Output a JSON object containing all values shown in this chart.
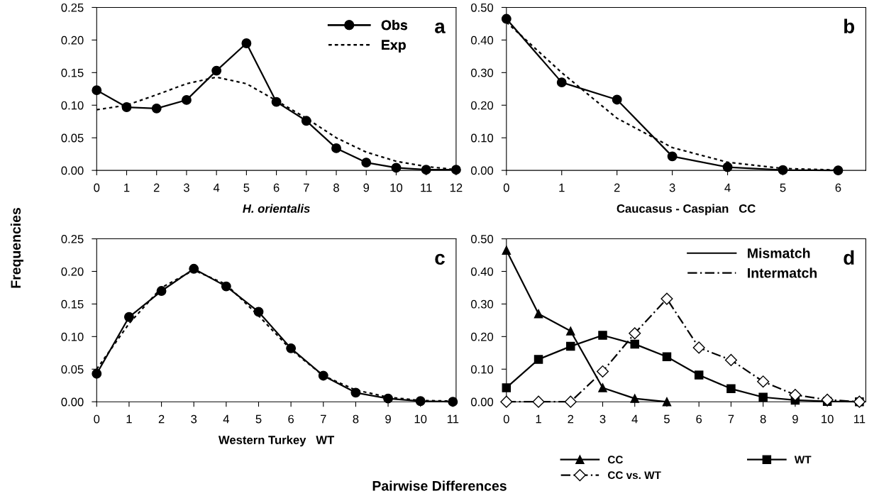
{
  "chart_data": [
    {
      "type": "line",
      "title": "a",
      "xlabel": "H. orientalis",
      "ylabel": "Frequencies",
      "x": [
        0,
        1,
        2,
        3,
        4,
        5,
        6,
        7,
        8,
        9,
        10,
        11,
        12
      ],
      "xlim": [
        0,
        12
      ],
      "xticks": [
        0,
        1,
        2,
        3,
        4,
        5,
        6,
        7,
        8,
        9,
        10,
        11,
        12
      ],
      "ylim": [
        0,
        0.25
      ],
      "yticks": [
        {
          "value": 0,
          "label": "0.00"
        },
        {
          "value": 0.05,
          "label": "0.05"
        },
        {
          "value": 0.1,
          "label": "0.10"
        },
        {
          "value": 0.15,
          "label": "0.15"
        },
        {
          "value": 0.2,
          "label": "0.20"
        },
        {
          "value": 0.25,
          "label": "0.25"
        }
      ],
      "grid": false,
      "legend": "top right",
      "series": [
        {
          "name": "Obs",
          "color": "#000000",
          "marker": "circle",
          "line_style": "solid",
          "values": [
            0.123,
            0.097,
            0.095,
            0.108,
            0.153,
            0.195,
            0.105,
            0.076,
            0.034,
            0.012,
            0.004,
            0.001,
            0.001
          ]
        },
        {
          "name": "Exp",
          "color": "#000000",
          "marker": "none",
          "line_style": "dotted",
          "values": [
            0.093,
            0.1,
            0.116,
            0.133,
            0.143,
            0.133,
            0.107,
            0.08,
            0.05,
            0.028,
            0.014,
            0.006,
            0.001
          ]
        }
      ]
    },
    {
      "type": "line",
      "title": "b",
      "xlabel": "Caucasus - Caspian   CC",
      "x": [
        0,
        1,
        2,
        3,
        4,
        5,
        6
      ],
      "xlim": [
        0,
        6.5
      ],
      "xticks": [
        0,
        1,
        2,
        3,
        4,
        5,
        6
      ],
      "ylim": [
        0,
        0.5
      ],
      "yticks": [
        {
          "value": 0,
          "label": "0.00"
        },
        {
          "value": 0.1,
          "label": "0.10"
        },
        {
          "value": 0.2,
          "label": "0.20"
        },
        {
          "value": 0.3,
          "label": "0.30"
        },
        {
          "value": 0.4,
          "label": "0.40"
        },
        {
          "value": 0.5,
          "label": "0.50"
        }
      ],
      "grid": false,
      "series": [
        {
          "color": "#000000",
          "marker": "circle",
          "line_style": "solid",
          "values": [
            0.465,
            0.27,
            0.217,
            0.043,
            0.01,
            0.001,
            0.0
          ]
        },
        {
          "color": "#000000",
          "marker": "none",
          "line_style": "dotted",
          "values": [
            0.455,
            0.3,
            0.16,
            0.07,
            0.025,
            0.006,
            0.001
          ]
        }
      ]
    },
    {
      "type": "line",
      "title": "c",
      "xlabel": "Western Turkey   WT",
      "x": [
        0,
        1,
        2,
        3,
        4,
        5,
        6,
        7,
        8,
        9,
        10,
        11
      ],
      "xlim": [
        0,
        11.1
      ],
      "xticks": [
        0,
        1,
        2,
        3,
        4,
        5,
        6,
        7,
        8,
        9,
        10,
        11
      ],
      "ylim": [
        0,
        0.25
      ],
      "yticks": [
        {
          "value": 0,
          "label": "0.00"
        },
        {
          "value": 0.05,
          "label": "0.05"
        },
        {
          "value": 0.1,
          "label": "0.10"
        },
        {
          "value": 0.15,
          "label": "0.15"
        },
        {
          "value": 0.2,
          "label": "0.20"
        },
        {
          "value": 0.25,
          "label": "0.25"
        }
      ],
      "grid": false,
      "series": [
        {
          "color": "#000000",
          "marker": "circle",
          "line_style": "solid",
          "values": [
            0.043,
            0.13,
            0.17,
            0.204,
            0.177,
            0.138,
            0.082,
            0.04,
            0.014,
            0.005,
            0.001,
            0.0
          ]
        },
        {
          "color": "#000000",
          "marker": "none",
          "line_style": "dotted",
          "values": [
            0.05,
            0.12,
            0.175,
            0.202,
            0.18,
            0.132,
            0.08,
            0.04,
            0.018,
            0.007,
            0.002,
            0.001
          ]
        }
      ]
    },
    {
      "type": "line",
      "title": "d",
      "xlabel": "Pairwise Differences",
      "x": [
        0,
        1,
        2,
        3,
        4,
        5,
        6,
        7,
        8,
        9,
        10,
        11
      ],
      "xlim": [
        0,
        11.2
      ],
      "xticks": [
        0,
        1,
        2,
        3,
        4,
        5,
        6,
        7,
        8,
        9,
        10,
        11
      ],
      "ylim": [
        0,
        0.5
      ],
      "yticks": [
        {
          "value": 0,
          "label": "0.00"
        },
        {
          "value": 0.1,
          "label": "0.10"
        },
        {
          "value": 0.2,
          "label": "0.20"
        },
        {
          "value": 0.3,
          "label": "0.30"
        },
        {
          "value": 0.4,
          "label": "0.40"
        },
        {
          "value": 0.5,
          "label": "0.50"
        }
      ],
      "grid": false,
      "legend": "bottom",
      "annotations": [
        "Mismatch",
        "Intermatch"
      ],
      "series": [
        {
          "name": "CC",
          "color": "#000000",
          "marker": "triangle",
          "line_style": "solid",
          "values": [
            0.465,
            0.27,
            0.217,
            0.043,
            0.01,
            0.0,
            null,
            null,
            null,
            null,
            null,
            null
          ]
        },
        {
          "name": "WT",
          "color": "#000000",
          "marker": "square",
          "line_style": "solid",
          "values": [
            0.043,
            0.13,
            0.17,
            0.204,
            0.177,
            0.138,
            0.082,
            0.04,
            0.014,
            0.005,
            0.001,
            0.0
          ]
        },
        {
          "name": "CC vs. WT",
          "color": "#000000",
          "marker": "diamond",
          "line_style": "dashdot",
          "values": [
            0,
            0,
            0,
            0.093,
            0.21,
            0.316,
            0.166,
            0.128,
            0.062,
            0.021,
            0.006,
            0.0
          ]
        }
      ]
    }
  ]
}
